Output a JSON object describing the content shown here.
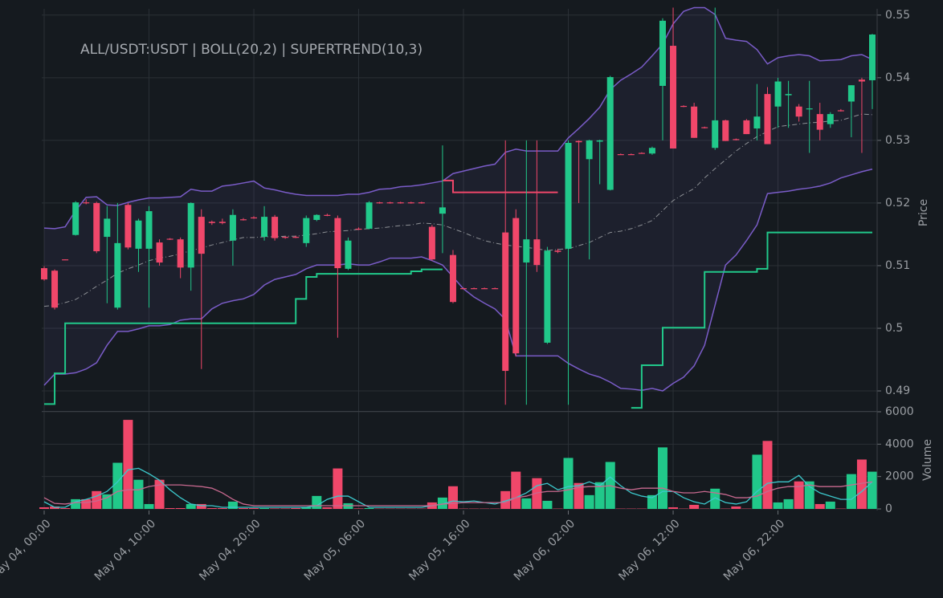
{
  "chart_data": {
    "type": "candlestick",
    "title": "ALL/USDT:USDT | BOLL(20,2) | SUPERTREND(10,3)",
    "up_color": "#21c88a",
    "down_color": "#f0476a",
    "grid": true,
    "xticks": [
      {
        "value": 0,
        "label": "May 04, 00:00"
      },
      {
        "value": 10,
        "label": "May 04, 10:00"
      },
      {
        "value": 20,
        "label": "May 04, 20:00"
      },
      {
        "value": 30,
        "label": "May 05, 06:00"
      },
      {
        "value": 40,
        "label": "May 05, 16:00"
      },
      {
        "value": 50,
        "label": "May 06, 02:00"
      },
      {
        "value": 60,
        "label": "May 06, 12:00"
      },
      {
        "value": 70,
        "label": "May 06, 22:00"
      }
    ],
    "ylabel": "Price",
    "ylim": [
      0.4868,
      0.551
    ],
    "yticks": [
      0.49,
      0.5,
      0.51,
      0.52,
      0.53,
      0.54,
      0.55
    ],
    "open": [
      0.5096,
      0.5092,
      0.511,
      0.5149,
      0.5201,
      0.52,
      0.5146,
      0.5033,
      0.5197,
      0.5127,
      0.5127,
      0.5137,
      0.5143,
      0.5142,
      0.5097,
      0.5178,
      0.517,
      0.517,
      0.514,
      0.5174,
      0.5177,
      0.5146,
      0.5178,
      0.5146,
      0.5146,
      0.5136,
      0.5173,
      0.5181,
      0.5176,
      0.5095,
      0.5159,
      0.5159,
      0.5201,
      0.5201,
      0.5201,
      0.5201,
      0.5201,
      0.5162,
      0.5183,
      0.5117,
      0.5064,
      0.5064,
      0.5064,
      0.5064,
      0.5153,
      0.5176,
      0.5105,
      0.5142,
      0.4977,
      0.5124,
      0.5127,
      0.5299,
      0.527,
      0.5298,
      0.5221,
      0.5278,
      0.5278,
      0.528,
      0.5279,
      0.5387,
      0.5451,
      0.5355,
      0.5354,
      0.5321,
      0.5288,
      0.5332,
      0.5302,
      0.5332,
      0.5319,
      0.5374,
      0.5354,
      0.5372,
      0.5354,
      0.535,
      0.5342,
      0.5326,
      0.5348,
      0.5362,
      0.5397,
      0.5396
    ],
    "high": [
      0.5099,
      0.5094,
      0.511,
      0.5203,
      0.5206,
      0.5202,
      0.5195,
      0.52,
      0.52,
      0.5175,
      0.5195,
      0.5142,
      0.5144,
      0.5145,
      0.5201,
      0.519,
      0.5172,
      0.5175,
      0.519,
      0.5176,
      0.5179,
      0.5195,
      0.5181,
      0.5147,
      0.5148,
      0.518,
      0.5182,
      0.5183,
      0.518,
      0.5145,
      0.5161,
      0.5203,
      0.5202,
      0.5202,
      0.5202,
      0.5202,
      0.5202,
      0.5165,
      0.5292,
      0.5125,
      0.5065,
      0.5065,
      0.5065,
      0.5065,
      0.53,
      0.519,
      0.53,
      0.53,
      0.513,
      0.5127,
      0.53,
      0.53,
      0.5301,
      0.5301,
      0.5403,
      0.5279,
      0.5279,
      0.5281,
      0.529,
      0.5495,
      0.5512,
      0.5356,
      0.536,
      0.5322,
      0.5512,
      0.5333,
      0.5303,
      0.5334,
      0.539,
      0.5385,
      0.54,
      0.5395,
      0.5358,
      0.5395,
      0.536,
      0.5345,
      0.535,
      0.5388,
      0.54,
      0.547
    ],
    "low": [
      0.5076,
      0.503,
      0.5109,
      0.5148,
      0.5198,
      0.512,
      0.504,
      0.503,
      0.5126,
      0.509,
      0.5033,
      0.51,
      0.5141,
      0.508,
      0.506,
      0.4935,
      0.5165,
      0.5166,
      0.51,
      0.5172,
      0.5175,
      0.514,
      0.514,
      0.5143,
      0.5144,
      0.513,
      0.5171,
      0.5179,
      0.4985,
      0.5093,
      0.5157,
      0.5158,
      0.5199,
      0.5199,
      0.5199,
      0.5199,
      0.5199,
      0.5108,
      0.512,
      0.504,
      0.5063,
      0.5063,
      0.5063,
      0.5063,
      0.4878,
      0.4955,
      0.4878,
      0.509,
      0.4975,
      0.512,
      0.4878,
      0.52,
      0.511,
      0.523,
      0.522,
      0.5277,
      0.5277,
      0.5279,
      0.5277,
      0.53,
      0.5287,
      0.5353,
      0.5304,
      0.5319,
      0.5285,
      0.5299,
      0.53,
      0.531,
      0.53,
      0.5294,
      0.532,
      0.532,
      0.533,
      0.528,
      0.53,
      0.532,
      0.5346,
      0.5305,
      0.528,
      0.535
    ],
    "close": [
      0.5078,
      0.5033,
      0.5109,
      0.5201,
      0.52,
      0.5123,
      0.5175,
      0.5136,
      0.5129,
      0.5172,
      0.5187,
      0.5105,
      0.5142,
      0.5097,
      0.52,
      0.5119,
      0.5168,
      0.5168,
      0.5181,
      0.5173,
      0.5176,
      0.5178,
      0.5144,
      0.5145,
      0.5145,
      0.5176,
      0.5181,
      0.518,
      0.5096,
      0.514,
      0.5158,
      0.5201,
      0.52,
      0.52,
      0.52,
      0.52,
      0.52,
      0.511,
      0.5193,
      0.5042,
      0.5063,
      0.5063,
      0.5063,
      0.5063,
      0.4932,
      0.496,
      0.5142,
      0.5101,
      0.5124,
      0.5122,
      0.5296,
      0.5297,
      0.53,
      0.53,
      0.5401,
      0.5277,
      0.5277,
      0.5279,
      0.5288,
      0.5491,
      0.5287,
      0.5354,
      0.5304,
      0.532,
      0.5332,
      0.5299,
      0.5301,
      0.531,
      0.5338,
      0.5294,
      0.5394,
      0.5374,
      0.5338,
      0.5351,
      0.5317,
      0.5342,
      0.5347,
      0.5388,
      0.5394,
      0.5469
    ],
    "bollinger": {
      "color": "#7a5cc8",
      "fill": "rgba(110,95,190,0.09)",
      "middle_color": "#8e9196",
      "upper": [
        0.516,
        0.5159,
        0.5162,
        0.5188,
        0.5209,
        0.521,
        0.5197,
        0.5196,
        0.5201,
        0.5205,
        0.5208,
        0.5208,
        0.5209,
        0.521,
        0.5222,
        0.5219,
        0.5219,
        0.5227,
        0.5229,
        0.5232,
        0.5235,
        0.5224,
        0.5221,
        0.5217,
        0.5214,
        0.5212,
        0.5212,
        0.5212,
        0.5212,
        0.5214,
        0.5214,
        0.5217,
        0.5222,
        0.5223,
        0.5226,
        0.5227,
        0.5229,
        0.5232,
        0.5235,
        0.5247,
        0.5251,
        0.5255,
        0.5259,
        0.5262,
        0.5281,
        0.5286,
        0.5283,
        0.5283,
        0.5283,
        0.5283,
        0.5304,
        0.5319,
        0.5335,
        0.5353,
        0.5381,
        0.5396,
        0.5406,
        0.5417,
        0.5435,
        0.5454,
        0.5486,
        0.5506,
        0.5512,
        0.5512,
        0.5501,
        0.5463,
        0.546,
        0.5458,
        0.5445,
        0.5422,
        0.5432,
        0.5435,
        0.5437,
        0.5435,
        0.5427,
        0.5428,
        0.5429,
        0.5435,
        0.5437,
        0.5429
      ],
      "middle": [
        0.5035,
        0.5037,
        0.5041,
        0.5046,
        0.5056,
        0.5067,
        0.5077,
        0.5088,
        0.5095,
        0.5101,
        0.5108,
        0.5112,
        0.5115,
        0.5119,
        0.5124,
        0.5128,
        0.5133,
        0.5137,
        0.5141,
        0.5145,
        0.5145,
        0.5146,
        0.5146,
        0.5147,
        0.5147,
        0.5149,
        0.5151,
        0.5154,
        0.5155,
        0.5156,
        0.5158,
        0.5159,
        0.516,
        0.5162,
        0.5164,
        0.5165,
        0.5168,
        0.5167,
        0.5165,
        0.5159,
        0.5153,
        0.5146,
        0.514,
        0.5136,
        0.5133,
        0.5131,
        0.5129,
        0.5127,
        0.5124,
        0.5126,
        0.5127,
        0.5132,
        0.5137,
        0.5145,
        0.5153,
        0.5155,
        0.5159,
        0.5165,
        0.5172,
        0.5188,
        0.5204,
        0.5214,
        0.5223,
        0.524,
        0.5255,
        0.5269,
        0.5283,
        0.5295,
        0.5306,
        0.5314,
        0.5322,
        0.5324,
        0.5326,
        0.5328,
        0.5329,
        0.5331,
        0.5332,
        0.5337,
        0.5342,
        0.5341
      ],
      "lower": [
        0.4909,
        0.4927,
        0.4927,
        0.4929,
        0.4935,
        0.4945,
        0.4973,
        0.4995,
        0.4995,
        0.4999,
        0.5004,
        0.5004,
        0.5006,
        0.5013,
        0.5015,
        0.5015,
        0.5031,
        0.504,
        0.5044,
        0.5047,
        0.5054,
        0.5069,
        0.5078,
        0.5082,
        0.5086,
        0.5095,
        0.5101,
        0.5101,
        0.5101,
        0.5103,
        0.5101,
        0.5101,
        0.5106,
        0.5112,
        0.5112,
        0.5112,
        0.5114,
        0.5108,
        0.5101,
        0.5082,
        0.5063,
        0.505,
        0.504,
        0.5031,
        0.5014,
        0.4956,
        0.4956,
        0.4956,
        0.4956,
        0.4956,
        0.4944,
        0.4935,
        0.4927,
        0.4922,
        0.4914,
        0.4904,
        0.4903,
        0.4901,
        0.4904,
        0.49,
        0.4912,
        0.4922,
        0.494,
        0.4973,
        0.5037,
        0.5101,
        0.5117,
        0.514,
        0.5165,
        0.5215,
        0.5217,
        0.5219,
        0.5222,
        0.5224,
        0.5227,
        0.5232,
        0.524,
        0.5245,
        0.525,
        0.5254
      ]
    },
    "supertrend": {
      "up": [
        0.4879,
        0.4928,
        0.5008,
        0.5008,
        0.5008,
        0.5008,
        0.5008,
        0.5008,
        0.5008,
        0.5008,
        0.5008,
        0.5008,
        0.5008,
        0.5008,
        0.5008,
        0.5008,
        0.5008,
        0.5008,
        0.5008,
        0.5008,
        0.5008,
        0.5008,
        0.5008,
        0.5008,
        0.5047,
        0.5082,
        0.5087,
        0.5087,
        0.5087,
        0.5087,
        0.5087,
        0.5087,
        0.5087,
        0.5087,
        0.5087,
        0.5091,
        0.5094,
        0.5094,
        0.5094,
        null,
        null,
        null,
        null,
        null,
        null,
        null,
        null,
        null,
        null,
        null,
        null,
        null,
        null,
        null,
        null,
        null,
        0.4873,
        0.4941,
        0.4941,
        0.5001,
        0.5001,
        0.5001,
        0.5001,
        0.509,
        0.509,
        0.509,
        0.509,
        0.509,
        0.5095,
        0.5153,
        0.5153,
        0.5153,
        0.5153,
        0.5153,
        0.5153,
        0.5153,
        0.5153,
        0.5153,
        0.5153,
        0.5153
      ],
      "down": [
        null,
        null,
        null,
        null,
        null,
        null,
        null,
        null,
        null,
        null,
        null,
        null,
        null,
        null,
        null,
        null,
        null,
        null,
        null,
        null,
        null,
        null,
        null,
        null,
        null,
        null,
        null,
        null,
        null,
        null,
        null,
        null,
        null,
        null,
        null,
        null,
        null,
        null,
        0.5236,
        0.5217,
        0.5217,
        0.5217,
        0.5217,
        0.5217,
        0.5217,
        0.5217,
        0.5217,
        0.5217,
        0.5217,
        0.5217,
        null,
        null,
        null,
        null,
        null,
        null,
        null,
        null,
        null,
        null,
        null,
        null,
        null,
        null,
        null,
        null,
        null,
        null,
        null,
        null,
        null,
        null,
        null,
        null,
        null,
        null,
        null,
        null,
        null,
        null
      ]
    },
    "volume": {
      "ylabel": "Volume",
      "ylim": [
        0,
        6000
      ],
      "yticks": [
        0,
        2000,
        4000,
        6000
      ],
      "values": [
        100,
        150,
        50,
        600,
        600,
        1100,
        900,
        2850,
        5500,
        1800,
        300,
        1800,
        50,
        50,
        300,
        300,
        50,
        50,
        450,
        50,
        50,
        50,
        30,
        30,
        50,
        100,
        800,
        100,
        2500,
        350,
        30,
        50,
        20,
        20,
        20,
        20,
        20,
        400,
        700,
        1400,
        20,
        20,
        20,
        20,
        1100,
        2300,
        650,
        1900,
        500,
        20,
        3150,
        1600,
        850,
        1650,
        2900,
        20,
        20,
        20,
        850,
        3800,
        100,
        20,
        250,
        20,
        1250,
        20,
        150,
        20,
        3350,
        4200,
        400,
        600,
        1700,
        1700,
        300,
        450,
        20,
        2150,
        3050,
        2300
      ],
      "ma": [
        {
          "color": "#3cc8cc",
          "values": [
            440,
            100,
            100,
            440,
            590,
            790,
            1080,
            1670,
            2410,
            2510,
            2170,
            1770,
            1180,
            690,
            300,
            200,
            200,
            100,
            100,
            100,
            100,
            100,
            100,
            100,
            100,
            100,
            200,
            590,
            790,
            790,
            440,
            100,
            100,
            100,
            100,
            100,
            100,
            200,
            300,
            490,
            440,
            490,
            390,
            300,
            490,
            690,
            990,
            1430,
            1580,
            1180,
            1380,
            1430,
            1670,
            1430,
            1970,
            1430,
            990,
            790,
            690,
            1080,
            1080,
            690,
            440,
            300,
            690,
            390,
            300,
            440,
            1080,
            1580,
            1670,
            1670,
            2070,
            1380,
            990,
            790,
            590,
            590,
            1080,
            1670
          ]
        },
        {
          "color": "#c8698f",
          "values": [
            690,
            340,
            300,
            390,
            390,
            490,
            690,
            1080,
            1180,
            1180,
            1380,
            1480,
            1480,
            1480,
            1430,
            1380,
            1280,
            990,
            590,
            300,
            200,
            200,
            200,
            200,
            200,
            200,
            200,
            200,
            200,
            200,
            200,
            200,
            200,
            200,
            200,
            200,
            200,
            200,
            300,
            340,
            390,
            390,
            390,
            390,
            390,
            690,
            790,
            990,
            1080,
            1080,
            1180,
            1330,
            1380,
            1380,
            1430,
            1280,
            1180,
            1280,
            1280,
            1280,
            1080,
            990,
            990,
            1080,
            990,
            890,
            690,
            690,
            790,
            1080,
            1280,
            1380,
            1380,
            1480,
            1380,
            1380,
            1380,
            1480,
            1580,
            1670
          ]
        }
      ]
    }
  }
}
